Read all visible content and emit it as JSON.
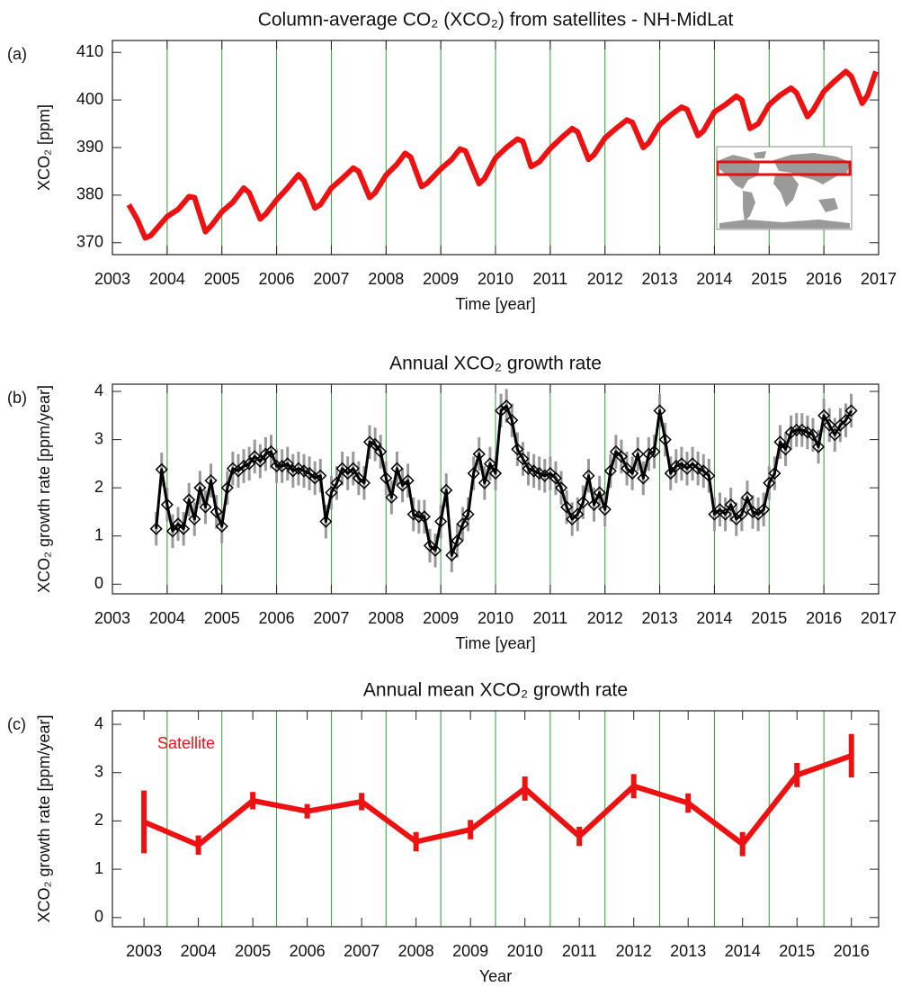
{
  "chart_data": [
    {
      "type": "line",
      "panel_label": "(a)",
      "title": "Column-average CO₂ (XCO₂) from satellites - NH-MidLat",
      "xlabel": "Time [year]",
      "ylabel": "XCO₂ [ppm]",
      "xlim": [
        2003,
        2017
      ],
      "ylim": [
        367.5,
        412.5
      ],
      "xticks": [
        2003,
        2004,
        2005,
        2006,
        2007,
        2008,
        2009,
        2010,
        2011,
        2012,
        2013,
        2014,
        2015,
        2016,
        2017
      ],
      "yticks": [
        370,
        380,
        390,
        400,
        410
      ],
      "grid": true,
      "grid_color": "#2ca02c",
      "series": [
        {
          "color": "#ee1111",
          "x": [
            2003.3,
            2003.45,
            2003.6,
            2003.7,
            2004.0,
            2004.2,
            2004.4,
            2004.5,
            2004.7,
            2004.8,
            2005.0,
            2005.2,
            2005.4,
            2005.5,
            2005.7,
            2005.8,
            2006.0,
            2006.2,
            2006.4,
            2006.5,
            2006.7,
            2006.8,
            2007.0,
            2007.2,
            2007.4,
            2007.5,
            2007.7,
            2007.8,
            2008.0,
            2008.2,
            2008.35,
            2008.45,
            2008.65,
            2008.75,
            2009.0,
            2009.2,
            2009.35,
            2009.45,
            2009.7,
            2009.8,
            2010.0,
            2010.2,
            2010.4,
            2010.5,
            2010.65,
            2010.8,
            2011.0,
            2011.2,
            2011.4,
            2011.5,
            2011.7,
            2011.8,
            2012.0,
            2012.2,
            2012.4,
            2012.5,
            2012.7,
            2012.8,
            2013.0,
            2013.2,
            2013.4,
            2013.5,
            2013.7,
            2013.8,
            2014.0,
            2014.2,
            2014.4,
            2014.5,
            2014.65,
            2014.8,
            2015.0,
            2015.2,
            2015.4,
            2015.5,
            2015.7,
            2015.8,
            2016.0,
            2016.2,
            2016.4,
            2016.5,
            2016.7,
            2016.8,
            2016.95
          ],
          "values": [
            378,
            375,
            371,
            371.5,
            375.5,
            377,
            379.7,
            379.5,
            372.3,
            373.5,
            376.5,
            378.5,
            381.5,
            380.5,
            375,
            376,
            379,
            381.5,
            384.3,
            383,
            377.3,
            378,
            381.5,
            383.5,
            385.7,
            385,
            379.5,
            380.5,
            384.2,
            386.5,
            388.8,
            388,
            381.8,
            382.5,
            385.5,
            387.5,
            389.7,
            389.3,
            382.4,
            383.5,
            387.8,
            390,
            391.8,
            391.3,
            386,
            387,
            389.8,
            392,
            394,
            393.3,
            387.5,
            388.5,
            392,
            394,
            395.8,
            395.3,
            390,
            391,
            394.8,
            396.8,
            398.5,
            398,
            392.5,
            393.5,
            397.5,
            399,
            400.8,
            400,
            394,
            395,
            399,
            401,
            402.5,
            401.5,
            396.5,
            397.8,
            401.8,
            404,
            406,
            405,
            399.3,
            401,
            406
          ]
        }
      ]
    },
    {
      "type": "line",
      "panel_label": "(b)",
      "title": "Annual XCO₂ growth rate",
      "xlabel": "Time [year]",
      "ylabel": "XCO₂ growth rate [ppm/year]",
      "xlim": [
        2003,
        2017
      ],
      "ylim": [
        -0.2,
        4.15
      ],
      "xticks": [
        2003,
        2004,
        2005,
        2006,
        2007,
        2008,
        2009,
        2010,
        2011,
        2012,
        2013,
        2014,
        2015,
        2016,
        2017
      ],
      "yticks": [
        0,
        1,
        2,
        3,
        4
      ],
      "grid": true,
      "grid_color": "#2ca02c",
      "series": [
        {
          "color": "#000000",
          "marker": "diamond",
          "error": 0.35,
          "error_color": "#999999",
          "x": [
            2003.8,
            2003.9,
            2004.0,
            2004.1,
            2004.2,
            2004.3,
            2004.4,
            2004.5,
            2004.6,
            2004.7,
            2004.8,
            2004.9,
            2005.0,
            2005.1,
            2005.2,
            2005.3,
            2005.4,
            2005.5,
            2005.6,
            2005.7,
            2005.8,
            2005.9,
            2006.0,
            2006.1,
            2006.2,
            2006.3,
            2006.4,
            2006.5,
            2006.6,
            2006.7,
            2006.8,
            2006.9,
            2007.0,
            2007.1,
            2007.2,
            2007.3,
            2007.4,
            2007.5,
            2007.6,
            2007.7,
            2007.8,
            2007.9,
            2008.0,
            2008.1,
            2008.2,
            2008.3,
            2008.4,
            2008.5,
            2008.6,
            2008.7,
            2008.8,
            2008.9,
            2009.0,
            2009.1,
            2009.2,
            2009.3,
            2009.4,
            2009.5,
            2009.6,
            2009.7,
            2009.8,
            2009.9,
            2010.0,
            2010.1,
            2010.2,
            2010.3,
            2010.4,
            2010.5,
            2010.6,
            2010.7,
            2010.8,
            2010.9,
            2011.0,
            2011.1,
            2011.2,
            2011.3,
            2011.4,
            2011.5,
            2011.6,
            2011.7,
            2011.8,
            2011.9,
            2012.0,
            2012.1,
            2012.2,
            2012.3,
            2012.4,
            2012.5,
            2012.6,
            2012.7,
            2012.8,
            2012.9,
            2013.0,
            2013.1,
            2013.2,
            2013.3,
            2013.4,
            2013.5,
            2013.6,
            2013.7,
            2013.8,
            2013.9,
            2014.0,
            2014.1,
            2014.2,
            2014.3,
            2014.4,
            2014.5,
            2014.6,
            2014.7,
            2014.8,
            2014.9,
            2015.0,
            2015.1,
            2015.2,
            2015.3,
            2015.4,
            2015.5,
            2015.6,
            2015.7,
            2015.8,
            2015.9,
            2016.0,
            2016.1,
            2016.2,
            2016.3,
            2016.4,
            2016.5
          ],
          "values": [
            1.15,
            2.38,
            1.65,
            1.1,
            1.25,
            1.15,
            1.75,
            1.35,
            2.0,
            1.6,
            2.15,
            1.5,
            1.2,
            2.0,
            2.4,
            2.35,
            2.45,
            2.5,
            2.65,
            2.55,
            2.7,
            2.75,
            2.45,
            2.45,
            2.5,
            2.35,
            2.4,
            2.35,
            2.3,
            2.2,
            2.25,
            1.3,
            1.9,
            2.1,
            2.4,
            2.3,
            2.4,
            2.2,
            2.1,
            2.95,
            2.9,
            2.75,
            2.2,
            1.8,
            2.4,
            2.05,
            2.15,
            1.45,
            1.4,
            1.4,
            0.8,
            0.7,
            1.3,
            1.95,
            0.6,
            0.9,
            1.25,
            1.45,
            2.3,
            2.7,
            2.1,
            2.5,
            2.3,
            3.6,
            3.7,
            3.4,
            2.8,
            2.6,
            2.4,
            2.35,
            2.3,
            2.25,
            2.3,
            2.2,
            2.0,
            1.6,
            1.35,
            1.45,
            1.7,
            2.25,
            1.65,
            1.9,
            1.55,
            2.35,
            2.75,
            2.65,
            2.4,
            2.3,
            2.7,
            2.2,
            2.7,
            2.75,
            3.6,
            3.0,
            2.3,
            2.45,
            2.5,
            2.4,
            2.5,
            2.4,
            2.35,
            2.25,
            1.45,
            1.55,
            1.45,
            1.65,
            1.35,
            1.45,
            1.8,
            1.5,
            1.45,
            1.55,
            2.1,
            2.3,
            2.95,
            2.8,
            3.15,
            3.2,
            3.2,
            3.15,
            3.1,
            2.85,
            3.5,
            3.3,
            3.1,
            3.3,
            3.4,
            3.6
          ]
        }
      ]
    },
    {
      "type": "line",
      "panel_label": "(c)",
      "title": "Annual mean XCO₂ growth rate",
      "xlabel": "Year",
      "ylabel": "XCO₂ growth rate [ppm/year]",
      "xlim": [
        2002.42,
        2016.5
      ],
      "ylim": [
        -0.19,
        4.28
      ],
      "xticks": [
        2003,
        2004,
        2005,
        2006,
        2007,
        2008,
        2009,
        2010,
        2011,
        2012,
        2013,
        2014,
        2015,
        2016
      ],
      "yticks": [
        0,
        1,
        2,
        3,
        4
      ],
      "grid": true,
      "grid_color": "#2ca02c",
      "series": [
        {
          "name": "Satellite",
          "color": "#ee1111",
          "x": [
            2003,
            2004,
            2005,
            2006,
            2007,
            2008,
            2009,
            2010,
            2011,
            2012,
            2013,
            2014,
            2015,
            2016
          ],
          "values": [
            1.98,
            1.5,
            2.42,
            2.2,
            2.4,
            1.57,
            1.82,
            2.67,
            1.68,
            2.72,
            2.37,
            1.52,
            2.95,
            3.35
          ],
          "errors": [
            0.65,
            0.2,
            0.18,
            0.15,
            0.18,
            0.2,
            0.2,
            0.25,
            0.2,
            0.25,
            0.2,
            0.25,
            0.25,
            0.45
          ]
        }
      ]
    }
  ]
}
